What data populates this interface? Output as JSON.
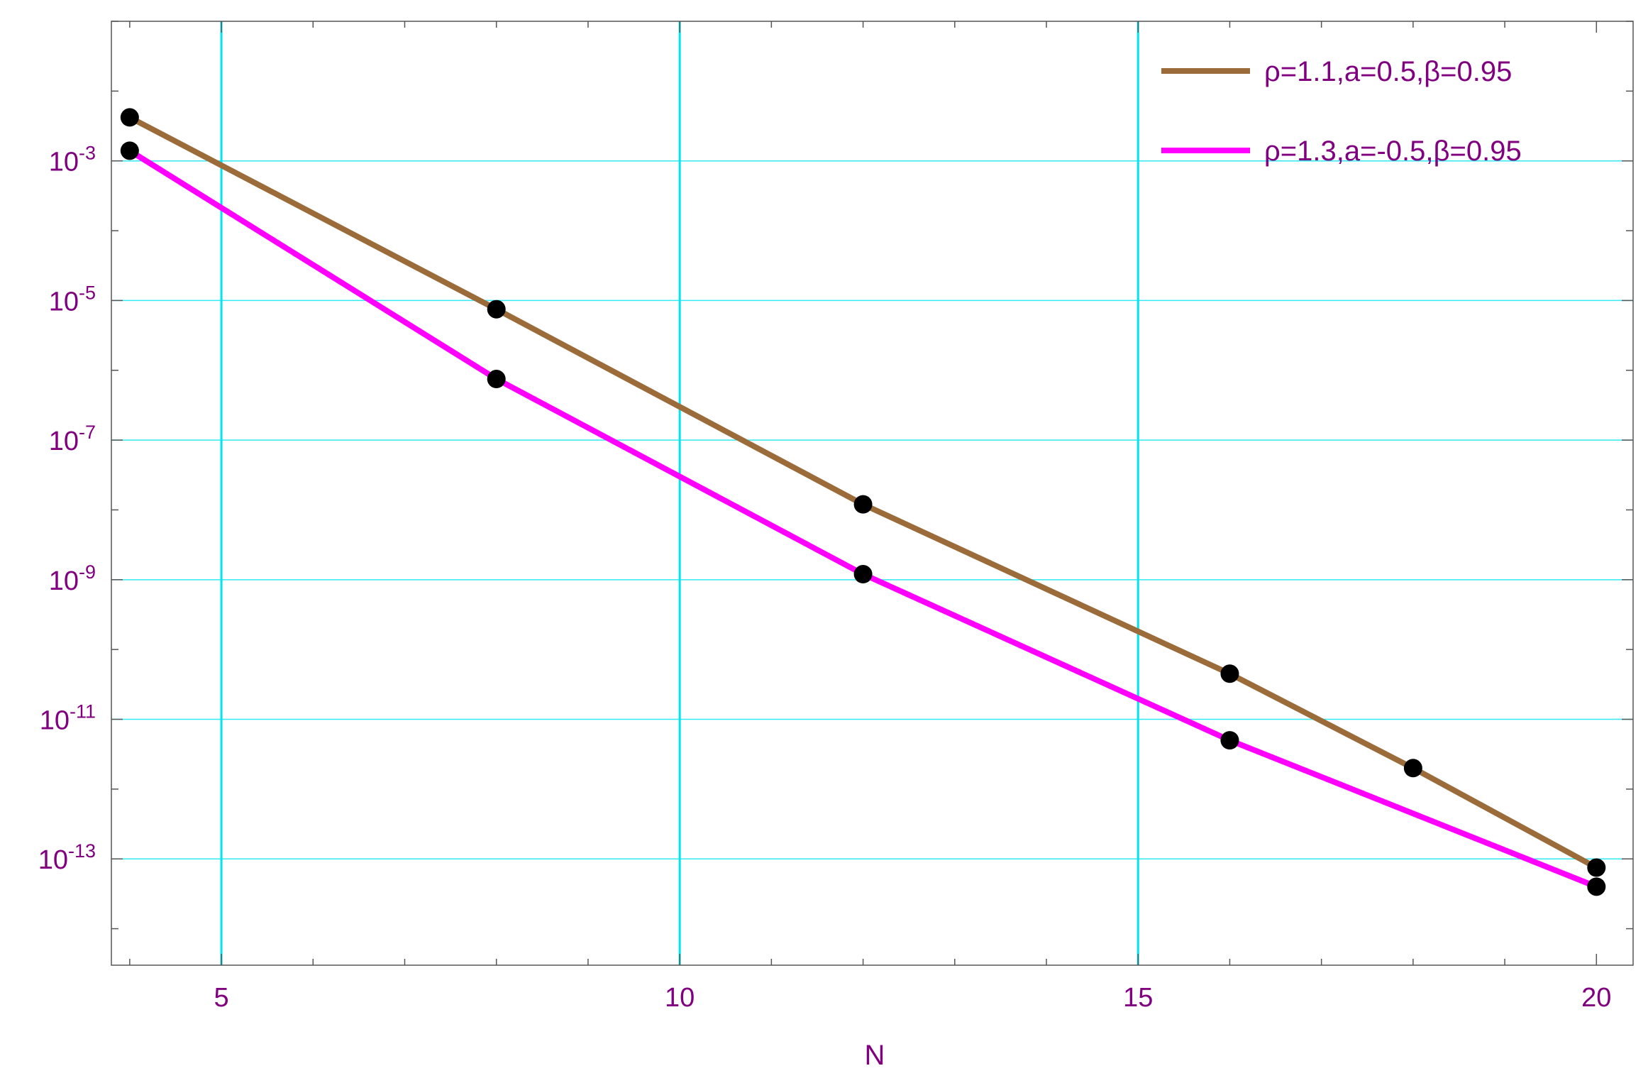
{
  "chart_data": {
    "type": "line",
    "title": "",
    "xlabel": "N",
    "ylabel": "",
    "yscale": "log",
    "xlim": [
      3.8,
      20.4
    ],
    "ylim": [
      3e-15,
      0.1
    ],
    "x_ticks": [
      5,
      10,
      15,
      20
    ],
    "x_tick_labels": [
      "5",
      "10",
      "15",
      "20"
    ],
    "y_ticks_exp": [
      -3,
      -5,
      -7,
      -9,
      -11,
      -13
    ],
    "y_tick_base": "10",
    "y_tick_exponents": [
      "-3",
      "-5",
      "-7",
      "-9",
      "-11",
      "-13"
    ],
    "grid": true,
    "grid_color": "#00e5ee",
    "legend_position": "top-right",
    "series": [
      {
        "name": "ρ=1.1,a=0.5,β=0.95",
        "color": "#9b6b3a",
        "x": [
          4,
          8,
          12,
          16,
          18,
          20
        ],
        "y": [
          0.0042,
          7.5e-06,
          1.2e-08,
          4.5e-11,
          2e-12,
          7.5e-14
        ]
      },
      {
        "name": "ρ=1.3,a=-0.5,β=0.95",
        "color": "#ff00ff",
        "x": [
          4,
          8,
          12,
          16,
          20
        ],
        "y": [
          0.0014,
          7.5e-07,
          1.2e-09,
          5e-12,
          4e-14
        ]
      }
    ],
    "marker_color": "#000000"
  }
}
